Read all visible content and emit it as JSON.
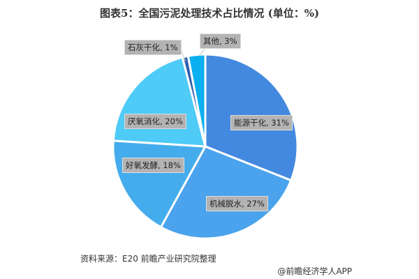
{
  "chart_data": {
    "type": "pie",
    "title": "图表5：全国污泥处理技术占比情况 (单位：%)",
    "categories": [
      "能源干化",
      "机械脱水",
      "好氧发酵",
      "厌氧消化",
      "石灰干化",
      "其他"
    ],
    "values": [
      31,
      27,
      18,
      20,
      1,
      3
    ],
    "labels": [
      "能源干化, 31%",
      "机械脱水, 27%",
      "好氧发酵, 18%",
      "厌氧消化, 20%",
      "石灰干化, 1%",
      "其他, 3%"
    ],
    "colors": [
      "#4389e0",
      "#4aa3ec",
      "#44acec",
      "#4ecbf7",
      "#2f5fb0",
      "#0aaff0"
    ],
    "start": "12 o'clock, clockwise"
  },
  "footer": {
    "source": "资料来源：E20 前瞻产业研究院整理",
    "credit": "@前瞻经济学人APP"
  }
}
